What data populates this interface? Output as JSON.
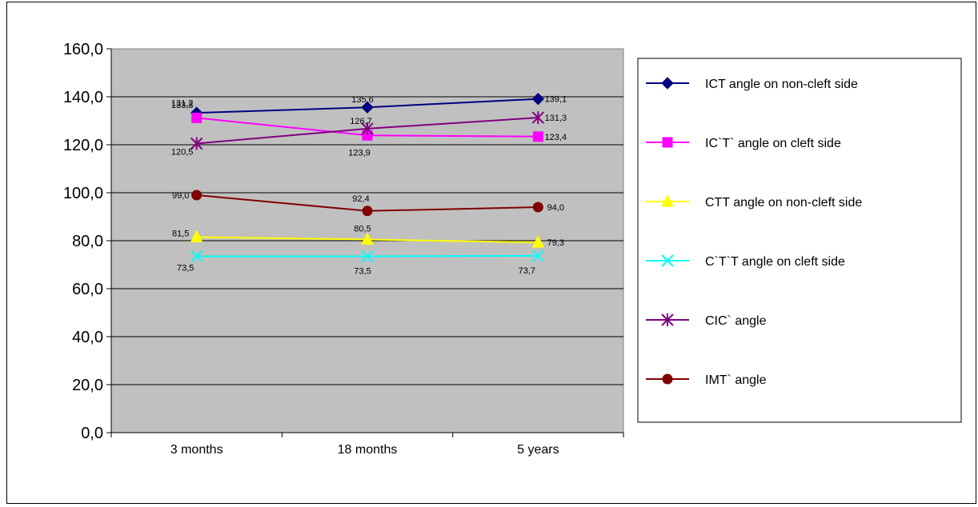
{
  "chart_data": {
    "type": "line",
    "title": "",
    "xlabel": "",
    "ylabel": "",
    "categories": [
      "3 months",
      "18 months",
      "5 years"
    ],
    "ylim": [
      0,
      160
    ],
    "ytick_step": 20,
    "ytick_labels": [
      "0,0",
      "20,0",
      "40,0",
      "60,0",
      "80,0",
      "100,0",
      "120,0",
      "140,0",
      "160,0"
    ],
    "grid": true,
    "plot_background": "#c0c0c0",
    "legend_position": "right",
    "series": [
      {
        "name": "ICT angle on non-cleft side",
        "values": [
          133.3,
          135.6,
          139.1
        ],
        "labels": [
          "133,3",
          "135,6",
          "139,1"
        ],
        "color": "#000080",
        "marker": "diamond"
      },
      {
        "name": "IC`T` angle on cleft side",
        "values": [
          131.2,
          123.9,
          123.4
        ],
        "labels": [
          "131,2",
          "123,9",
          "123,4"
        ],
        "color": "#ff00ff",
        "marker": "square"
      },
      {
        "name": "CTT angle on non-cleft side",
        "values": [
          81.5,
          80.5,
          79.3
        ],
        "labels": [
          "81,5",
          "80,5",
          "79,3"
        ],
        "color": "#ffff00",
        "marker": "triangle"
      },
      {
        "name": "C`T`T angle on cleft side",
        "values": [
          73.5,
          73.5,
          73.7
        ],
        "labels": [
          "73,5",
          "73,5",
          "73,7"
        ],
        "color": "#00ffff",
        "marker": "x"
      },
      {
        "name": "CIC` angle",
        "values": [
          120.5,
          126.7,
          131.3
        ],
        "labels": [
          "120,5",
          "126,7",
          "131,3"
        ],
        "color": "#800080",
        "marker": "star"
      },
      {
        "name": "IMT` angle",
        "values": [
          99.0,
          92.4,
          94.0
        ],
        "labels": [
          "99,0",
          "92,4",
          "94,0"
        ],
        "color": "#800000",
        "marker": "circle"
      }
    ]
  }
}
